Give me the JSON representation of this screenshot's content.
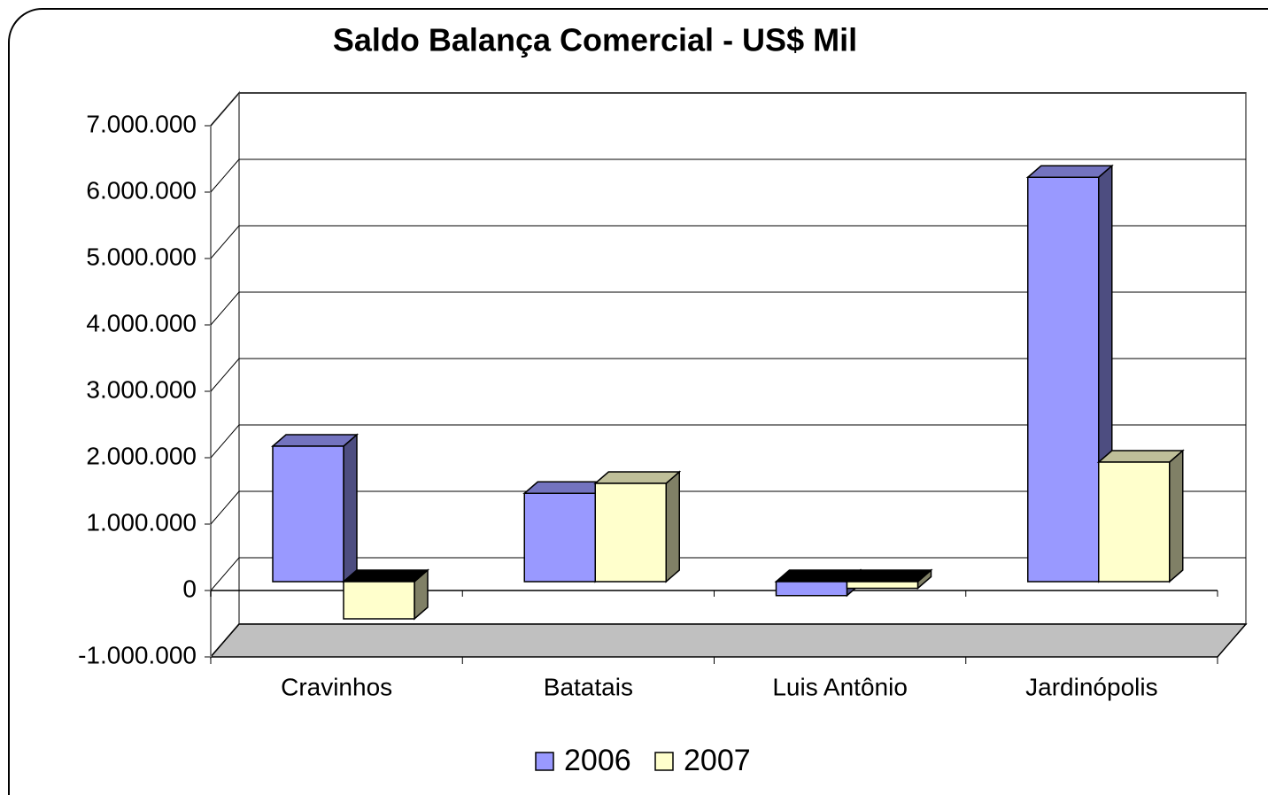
{
  "chart_data": {
    "type": "bar3d",
    "title": "Saldo Balança Comercial - US$ Mil",
    "categories": [
      "Cravinhos",
      "Batatais",
      "Luis Antônio",
      "Jardinópolis"
    ],
    "series": [
      {
        "name": "2006",
        "color": "#9999ff",
        "values": [
          2040000,
          1330000,
          -210000,
          6090000
        ]
      },
      {
        "name": "2007",
        "color": "#ffffcc",
        "values": [
          -560000,
          1480000,
          -100000,
          1800000
        ]
      }
    ],
    "ylim": [
      -1000000,
      7000000
    ],
    "yticks": [
      {
        "value": -1000000,
        "label": "-1.000.000"
      },
      0,
      {
        "value": 1000000,
        "label": "1.000.000"
      },
      {
        "value": 2000000,
        "label": "2.000.000"
      },
      {
        "value": 3000000,
        "label": "3.000.000"
      },
      {
        "value": 4000000,
        "label": "4.000.000"
      },
      {
        "value": 5000000,
        "label": "5.000.000"
      },
      {
        "value": 6000000,
        "label": "6.000.000"
      },
      {
        "value": 7000000,
        "label": "7.000.000"
      }
    ],
    "grid": true,
    "legend": "bottom"
  }
}
